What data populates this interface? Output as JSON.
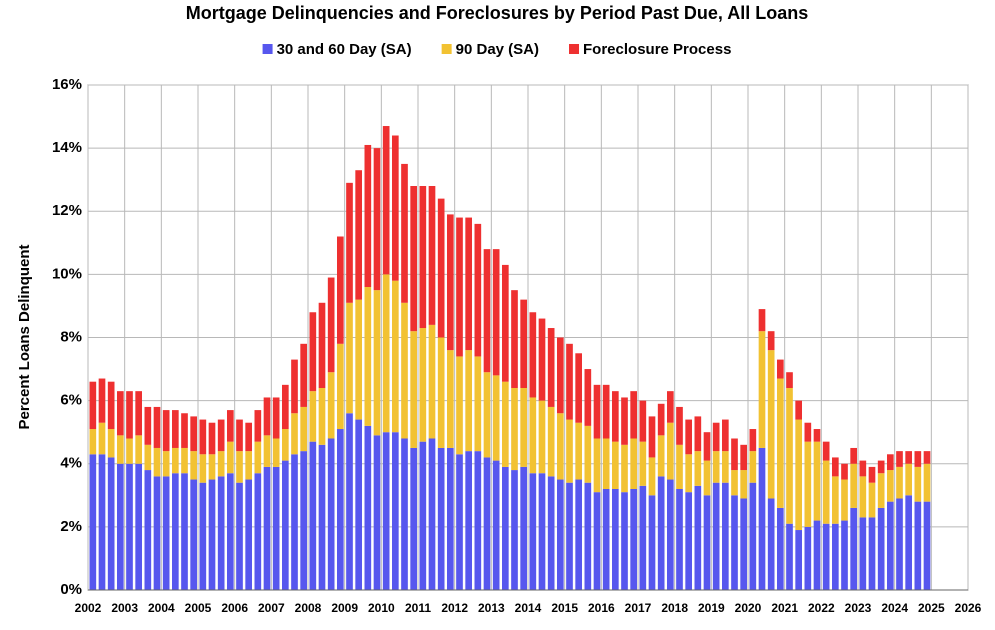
{
  "chart_data": {
    "type": "stacked_bar",
    "title": "Mortgage Delinquencies and Foreclosures by Period Past Due, All Loans",
    "y_label": "Percent Loans Delinquent",
    "xlim": [
      2002,
      2026
    ],
    "xticks": [
      2002,
      2003,
      2004,
      2005,
      2006,
      2007,
      2008,
      2009,
      2010,
      2011,
      2012,
      2013,
      2014,
      2015,
      2016,
      2017,
      2018,
      2019,
      2020,
      2021,
      2022,
      2023,
      2024,
      2025,
      2026
    ],
    "ylim": [
      0,
      16
    ],
    "yticks": [
      {
        "value": 0,
        "label": "0%"
      },
      {
        "value": 2,
        "label": "2%"
      },
      {
        "value": 4,
        "label": "4%"
      },
      {
        "value": 6,
        "label": "6%"
      },
      {
        "value": 8,
        "label": "8%"
      },
      {
        "value": 10,
        "label": "10%"
      },
      {
        "value": 12,
        "label": "12%"
      },
      {
        "value": 14,
        "label": "14%"
      },
      {
        "value": 16,
        "label": "16%"
      }
    ],
    "grid": true,
    "x": [
      2002,
      2002.25,
      2002.5,
      2002.75,
      2003,
      2003.25,
      2003.5,
      2003.75,
      2004,
      2004.25,
      2004.5,
      2004.75,
      2005,
      2005.25,
      2005.5,
      2005.75,
      2006,
      2006.25,
      2006.5,
      2006.75,
      2007,
      2007.25,
      2007.5,
      2007.75,
      2008,
      2008.25,
      2008.5,
      2008.75,
      2009,
      2009.25,
      2009.5,
      2009.75,
      2010,
      2010.25,
      2010.5,
      2010.75,
      2011,
      2011.25,
      2011.5,
      2011.75,
      2012,
      2012.25,
      2012.5,
      2012.75,
      2013,
      2013.25,
      2013.5,
      2013.75,
      2014,
      2014.25,
      2014.5,
      2014.75,
      2015,
      2015.25,
      2015.5,
      2015.75,
      2016,
      2016.25,
      2016.5,
      2016.75,
      2017,
      2017.25,
      2017.5,
      2017.75,
      2018,
      2018.25,
      2018.5,
      2018.75,
      2019,
      2019.25,
      2019.5,
      2019.75,
      2020,
      2020.25,
      2020.5,
      2020.75,
      2021,
      2021.25,
      2021.5,
      2021.75,
      2022,
      2022.25,
      2022.5,
      2022.75,
      2023,
      2023.25,
      2023.5,
      2023.75,
      2024,
      2024.25,
      2024.5,
      2024.75
    ],
    "series": [
      {
        "name": "30 and 60 Day (SA)",
        "color": "#5757ee",
        "values": [
          4.3,
          4.3,
          4.2,
          4.0,
          4.0,
          4.0,
          3.8,
          3.6,
          3.6,
          3.7,
          3.7,
          3.5,
          3.4,
          3.5,
          3.6,
          3.7,
          3.4,
          3.5,
          3.7,
          3.9,
          3.9,
          4.1,
          4.3,
          4.4,
          4.7,
          4.6,
          4.8,
          5.1,
          5.6,
          5.4,
          5.2,
          4.9,
          5.0,
          5.0,
          4.8,
          4.5,
          4.7,
          4.8,
          4.5,
          4.5,
          4.3,
          4.4,
          4.4,
          4.2,
          4.1,
          3.9,
          3.8,
          3.9,
          3.7,
          3.7,
          3.6,
          3.5,
          3.4,
          3.5,
          3.4,
          3.1,
          3.2,
          3.2,
          3.1,
          3.2,
          3.3,
          3.0,
          3.6,
          3.5,
          3.2,
          3.1,
          3.3,
          3.0,
          3.4,
          3.4,
          3.0,
          2.9,
          3.4,
          4.5,
          2.9,
          2.6,
          2.1,
          1.9,
          2.0,
          2.2,
          2.1,
          2.1,
          2.2,
          2.6,
          2.3,
          2.3,
          2.6,
          2.8,
          2.9,
          3.0,
          2.8,
          2.8
        ]
      },
      {
        "name": "90 Day (SA)",
        "color": "#f2c232",
        "values": [
          0.8,
          1.0,
          0.9,
          0.9,
          0.8,
          0.9,
          0.8,
          0.9,
          0.8,
          0.8,
          0.8,
          0.9,
          0.9,
          0.8,
          0.8,
          1.0,
          1.0,
          0.9,
          1.0,
          1.0,
          0.9,
          1.0,
          1.3,
          1.4,
          1.6,
          1.8,
          2.1,
          2.7,
          3.5,
          3.8,
          4.4,
          4.6,
          5.0,
          4.8,
          4.3,
          3.7,
          3.6,
          3.6,
          3.5,
          3.1,
          3.1,
          3.2,
          3.0,
          2.7,
          2.7,
          2.7,
          2.6,
          2.5,
          2.4,
          2.3,
          2.2,
          2.1,
          2.0,
          1.8,
          1.8,
          1.7,
          1.6,
          1.5,
          1.5,
          1.6,
          1.4,
          1.2,
          1.3,
          1.8,
          1.4,
          1.2,
          1.1,
          1.1,
          1.0,
          1.0,
          0.8,
          0.9,
          1.0,
          3.7,
          4.7,
          4.1,
          4.3,
          3.5,
          2.7,
          2.5,
          2.0,
          1.5,
          1.3,
          1.4,
          1.3,
          1.1,
          1.1,
          1.0,
          1.0,
          1.0,
          1.1,
          1.2
        ]
      },
      {
        "name": "Foreclosure Process",
        "color": "#ee3030",
        "values": [
          1.5,
          1.4,
          1.5,
          1.4,
          1.5,
          1.4,
          1.2,
          1.3,
          1.3,
          1.2,
          1.1,
          1.1,
          1.1,
          1.0,
          1.0,
          1.0,
          1.0,
          0.9,
          1.0,
          1.2,
          1.3,
          1.4,
          1.7,
          2.0,
          2.5,
          2.7,
          3.0,
          3.4,
          3.8,
          4.1,
          4.5,
          4.5,
          4.7,
          4.6,
          4.4,
          4.6,
          4.5,
          4.4,
          4.4,
          4.3,
          4.4,
          4.2,
          4.2,
          3.9,
          4.0,
          3.7,
          3.1,
          2.8,
          2.7,
          2.6,
          2.5,
          2.4,
          2.4,
          2.2,
          1.8,
          1.7,
          1.7,
          1.6,
          1.5,
          1.5,
          1.3,
          1.3,
          1.0,
          1.0,
          1.2,
          1.1,
          1.1,
          0.9,
          0.9,
          1.0,
          1.0,
          0.8,
          0.7,
          0.7,
          0.6,
          0.6,
          0.5,
          0.6,
          0.6,
          0.4,
          0.6,
          0.6,
          0.5,
          0.5,
          0.5,
          0.5,
          0.4,
          0.5,
          0.5,
          0.4,
          0.5,
          0.4
        ]
      }
    ]
  }
}
